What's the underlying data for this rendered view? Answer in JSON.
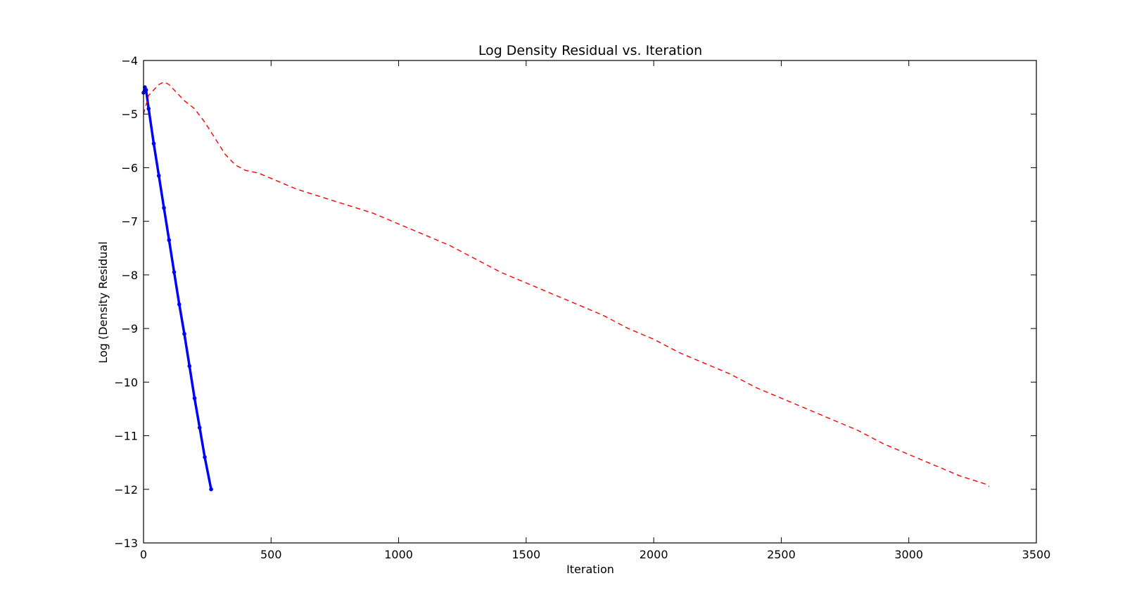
{
  "chart_data": {
    "type": "line",
    "title": "Log Density Residual vs. Iteration",
    "xlabel": "Iteration",
    "ylabel": "Log (Density Residual",
    "xlim": [
      0,
      3500
    ],
    "ylim": [
      -13,
      -4
    ],
    "xticks": [
      0,
      500,
      1000,
      1500,
      2000,
      2500,
      3000,
      3500
    ],
    "yticks": [
      -4,
      -5,
      -6,
      -7,
      -8,
      -9,
      -10,
      -11,
      -12,
      -13
    ],
    "grid": false,
    "legend": "none",
    "series": [
      {
        "color": "#0000ff",
        "style": "solid-thick-markers",
        "x": [
          0,
          5,
          10,
          20,
          40,
          60,
          80,
          100,
          120,
          140,
          160,
          180,
          200,
          220,
          240,
          265
        ],
        "y": [
          -4.6,
          -4.5,
          -4.55,
          -4.9,
          -5.55,
          -6.15,
          -6.75,
          -7.35,
          -7.95,
          -8.55,
          -9.1,
          -9.7,
          -10.3,
          -10.85,
          -11.4,
          -12.0
        ]
      },
      {
        "color": "#ff0000",
        "style": "dashed",
        "x": [
          0,
          20,
          40,
          60,
          80,
          100,
          130,
          160,
          200,
          240,
          280,
          320,
          360,
          400,
          450,
          500,
          550,
          600,
          700,
          800,
          900,
          1000,
          1100,
          1200,
          1300,
          1400,
          1500,
          1600,
          1700,
          1800,
          1900,
          2000,
          2100,
          2200,
          2300,
          2400,
          2500,
          2600,
          2700,
          2800,
          2900,
          3000,
          3100,
          3200,
          3300,
          3315
        ],
        "y": [
          -5.0,
          -4.65,
          -4.55,
          -4.45,
          -4.4,
          -4.45,
          -4.6,
          -4.75,
          -4.9,
          -5.15,
          -5.45,
          -5.75,
          -5.95,
          -6.05,
          -6.1,
          -6.2,
          -6.3,
          -6.4,
          -6.55,
          -6.7,
          -6.85,
          -7.05,
          -7.25,
          -7.45,
          -7.7,
          -7.95,
          -8.15,
          -8.35,
          -8.55,
          -8.75,
          -9.0,
          -9.2,
          -9.45,
          -9.65,
          -9.85,
          -10.1,
          -10.3,
          -10.5,
          -10.7,
          -10.9,
          -11.15,
          -11.35,
          -11.55,
          -11.75,
          -11.9,
          -11.95
        ]
      }
    ]
  }
}
